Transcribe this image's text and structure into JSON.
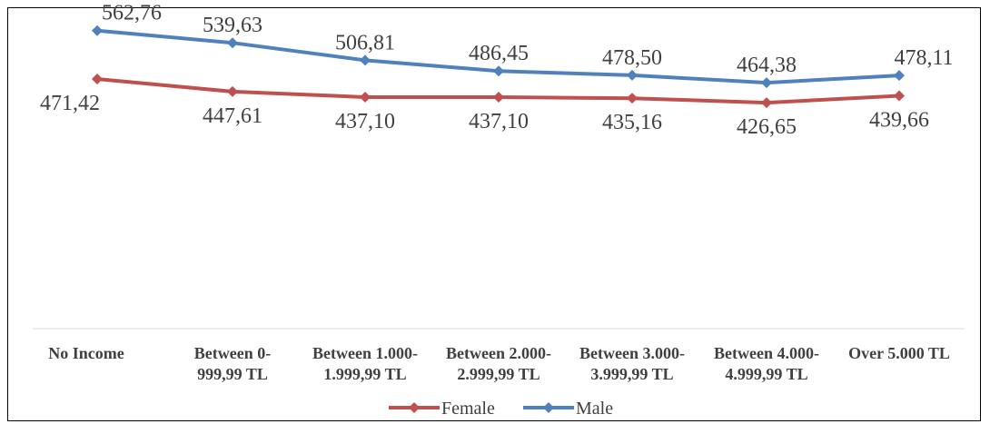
{
  "chart_data": {
    "type": "line",
    "title": "",
    "xlabel": "",
    "ylabel": "",
    "ylim": [
      0,
      600
    ],
    "grid": false,
    "legend_position": "bottom",
    "categories": [
      [
        "No Income"
      ],
      [
        "Between 0-",
        "999,99 TL"
      ],
      [
        "Between 1.000-",
        "1.999,99 TL"
      ],
      [
        "Between 2.000-",
        "2.999,99 TL"
      ],
      [
        "Between 3.000-",
        "3.999,99 TL"
      ],
      [
        "Between 4.000-",
        "4.999,99 TL"
      ],
      [
        "Over 5.000 TL"
      ]
    ],
    "series": [
      {
        "name": "Female",
        "color": "#C0504D",
        "values": [
          471.42,
          447.61,
          437.1,
          437.1,
          435.16,
          426.65,
          439.66
        ],
        "labels": [
          "471,42",
          "447,61",
          "437,10",
          "437,10",
          "435,16",
          "426,65",
          "439,66"
        ]
      },
      {
        "name": "Male",
        "color": "#4F81BD",
        "values": [
          562.76,
          539.63,
          506.81,
          486.45,
          478.5,
          464.38,
          478.11
        ],
        "labels": [
          "562,76",
          "539,63",
          "506,81",
          "486,45",
          "478,50",
          "464,38",
          "478,11"
        ]
      }
    ]
  }
}
